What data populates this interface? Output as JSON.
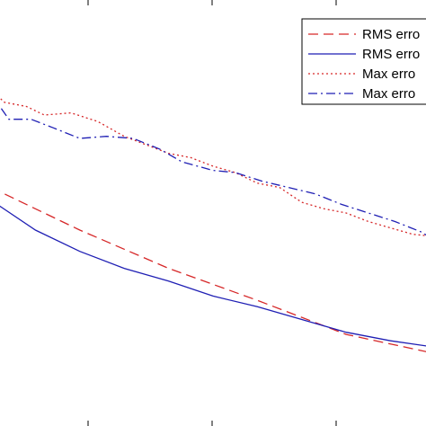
{
  "chart_data": {
    "type": "line",
    "title": "",
    "xlabel": "",
    "ylabel": "",
    "grid": false,
    "legend_position": "top-right",
    "series": [
      {
        "name": "RMS erro",
        "color": "#d62728",
        "style": "dashed",
        "x": [
          0,
          20,
          40,
          60,
          80,
          100
        ],
        "y": [
          0.56,
          0.46,
          0.37,
          0.295,
          0.215,
          0.17
        ]
      },
      {
        "name": "RMS erro",
        "color": "#1f1fb4",
        "style": "solid",
        "x": [
          0,
          10,
          20,
          30,
          40,
          50,
          60,
          70,
          80,
          90,
          100
        ],
        "y": [
          0.53,
          0.46,
          0.41,
          0.37,
          0.34,
          0.305,
          0.28,
          0.25,
          0.22,
          0.2,
          0.185
        ]
      },
      {
        "name": "Max erro",
        "color": "#d62728",
        "style": "dotted",
        "x": [
          0,
          3,
          8,
          12,
          18,
          24,
          30,
          35,
          40,
          45,
          50,
          55,
          60,
          65,
          70,
          75,
          80,
          85,
          90,
          95,
          100
        ],
        "y": [
          0.79,
          0.76,
          0.75,
          0.73,
          0.735,
          0.715,
          0.68,
          0.66,
          0.64,
          0.63,
          0.61,
          0.595,
          0.57,
          0.56,
          0.525,
          0.51,
          0.5,
          0.48,
          0.465,
          0.45,
          0.445
        ]
      },
      {
        "name": "Max erro",
        "color": "#1f1fb4",
        "style": "dashdot",
        "x": [
          0,
          4,
          9,
          14,
          20,
          26,
          32,
          38,
          43,
          50,
          55,
          61,
          67,
          73,
          79,
          85,
          91,
          97,
          100
        ],
        "y": [
          0.78,
          0.72,
          0.72,
          0.7,
          0.675,
          0.68,
          0.675,
          0.65,
          0.62,
          0.6,
          0.595,
          0.575,
          0.56,
          0.545,
          0.52,
          0.5,
          0.48,
          0.455,
          0.435
        ]
      }
    ],
    "xlim": [
      0,
      100
    ],
    "ylim": [
      0,
      1
    ]
  }
}
